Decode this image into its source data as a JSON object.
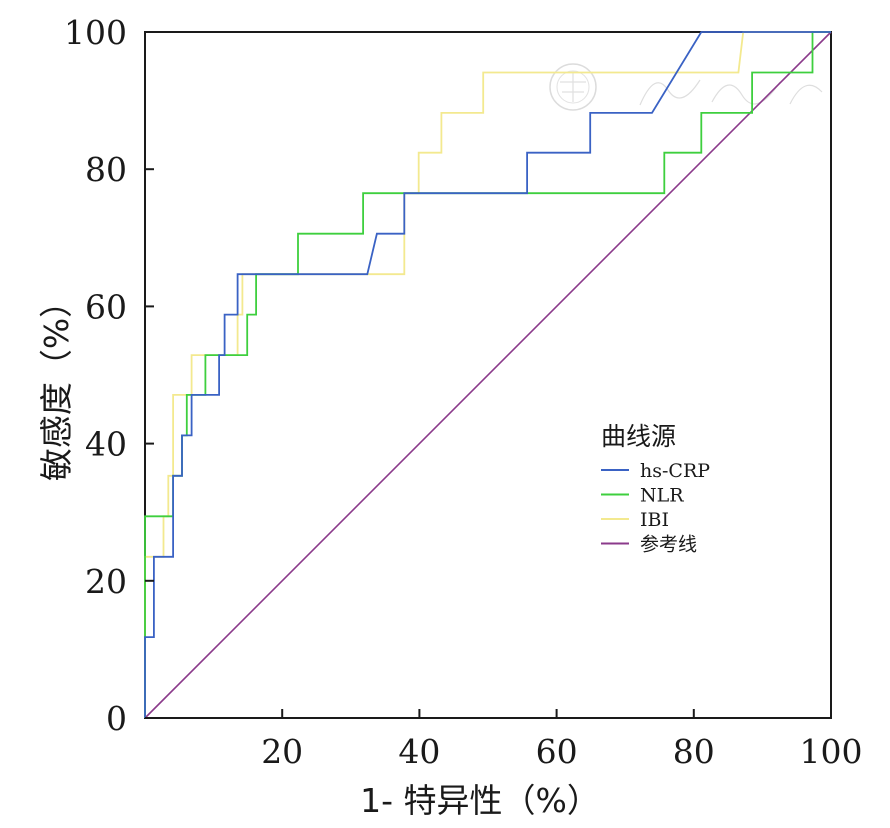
{
  "chart_data": {
    "type": "line",
    "xlabel": "1- 特异性（%）",
    "ylabel": "敏感度（%）",
    "xlim": [
      0,
      100
    ],
    "ylim": [
      0,
      100
    ],
    "x_ticks": [
      20,
      40,
      60,
      80,
      100
    ],
    "y_ticks": [
      0,
      20,
      40,
      60,
      80,
      100
    ],
    "grid": false,
    "legend": {
      "title": "曲线源",
      "position": "center-right"
    },
    "series": [
      {
        "name": "hs-CRP",
        "color": "#3a62c4",
        "points": [
          [
            0,
            0
          ],
          [
            0,
            11.8
          ],
          [
            1.3,
            11.8
          ],
          [
            1.3,
            23.5
          ],
          [
            4.1,
            23.5
          ],
          [
            4.1,
            35.3
          ],
          [
            5.4,
            35.3
          ],
          [
            5.4,
            41.2
          ],
          [
            6.8,
            41.2
          ],
          [
            6.8,
            47.1
          ],
          [
            10.8,
            47.1
          ],
          [
            10.8,
            52.9
          ],
          [
            11.6,
            52.9
          ],
          [
            11.6,
            58.8
          ],
          [
            13.5,
            58.8
          ],
          [
            13.5,
            64.7
          ],
          [
            32.4,
            64.7
          ],
          [
            33.8,
            70.6
          ],
          [
            37.8,
            70.6
          ],
          [
            37.8,
            76.5
          ],
          [
            55.7,
            76.5
          ],
          [
            55.7,
            82.4
          ],
          [
            64.9,
            82.4
          ],
          [
            64.9,
            88.2
          ],
          [
            73.9,
            88.2
          ],
          [
            81.1,
            100
          ],
          [
            100,
            100
          ]
        ]
      },
      {
        "name": "NLR",
        "color": "#3ecf3e",
        "points": [
          [
            0,
            0
          ],
          [
            0,
            29.4
          ],
          [
            4.1,
            29.4
          ],
          [
            4.1,
            35.3
          ],
          [
            5.4,
            35.3
          ],
          [
            5.4,
            41.2
          ],
          [
            6.1,
            41.2
          ],
          [
            6.1,
            47.1
          ],
          [
            8.8,
            47.1
          ],
          [
            8.8,
            52.9
          ],
          [
            14.9,
            52.9
          ],
          [
            14.9,
            58.8
          ],
          [
            16.2,
            58.8
          ],
          [
            16.2,
            64.7
          ],
          [
            22.3,
            64.7
          ],
          [
            22.3,
            70.6
          ],
          [
            31.8,
            70.6
          ],
          [
            31.8,
            76.5
          ],
          [
            75.7,
            76.5
          ],
          [
            75.7,
            82.4
          ],
          [
            81.1,
            82.4
          ],
          [
            81.1,
            88.2
          ],
          [
            88.5,
            88.2
          ],
          [
            88.5,
            94.1
          ],
          [
            97.3,
            94.1
          ],
          [
            97.3,
            100
          ],
          [
            100,
            100
          ]
        ]
      },
      {
        "name": "IBI",
        "color": "#f3e98f",
        "points": [
          [
            0,
            0
          ],
          [
            0,
            23.5
          ],
          [
            2.7,
            23.5
          ],
          [
            2.7,
            29.4
          ],
          [
            3.4,
            29.4
          ],
          [
            3.4,
            35.3
          ],
          [
            4.1,
            35.3
          ],
          [
            4.1,
            47.1
          ],
          [
            6.8,
            47.1
          ],
          [
            6.8,
            52.9
          ],
          [
            13.5,
            52.9
          ],
          [
            13.5,
            58.8
          ],
          [
            14.2,
            58.8
          ],
          [
            14.2,
            64.7
          ],
          [
            37.8,
            64.7
          ],
          [
            37.8,
            76.5
          ],
          [
            39.9,
            76.5
          ],
          [
            39.9,
            82.4
          ],
          [
            43.2,
            82.4
          ],
          [
            43.2,
            88.2
          ],
          [
            49.3,
            88.2
          ],
          [
            49.3,
            94.1
          ],
          [
            86.5,
            94.1
          ],
          [
            87.2,
            100
          ],
          [
            100,
            100
          ]
        ]
      },
      {
        "name": "参考线",
        "color": "#8b3a8b",
        "points": [
          [
            0,
            0
          ],
          [
            100,
            100
          ]
        ]
      }
    ]
  }
}
